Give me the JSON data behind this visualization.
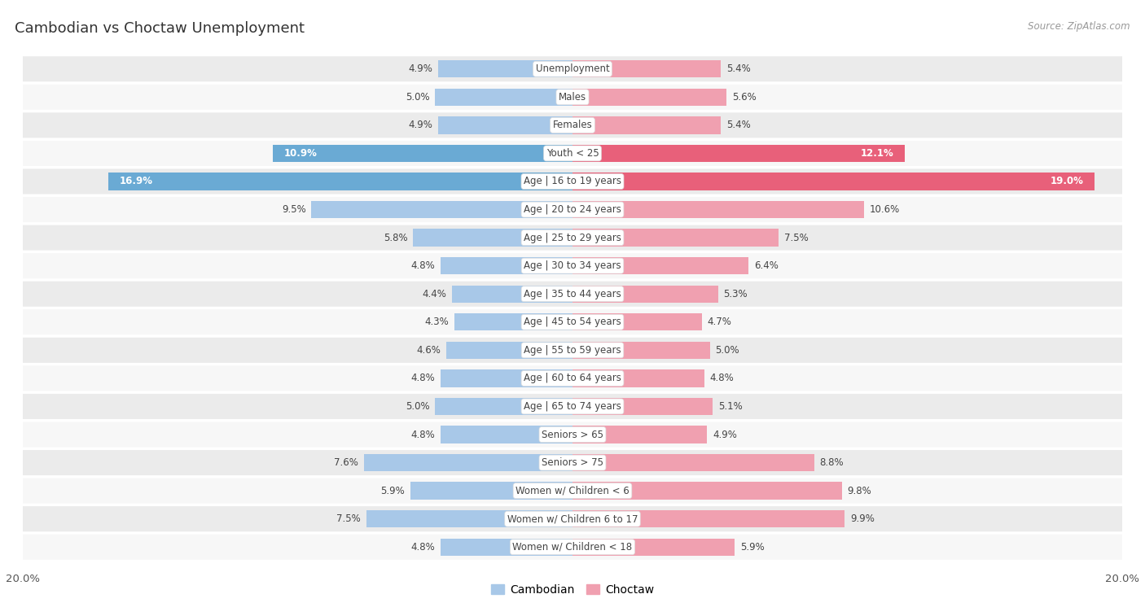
{
  "title": "Cambodian vs Choctaw Unemployment",
  "source": "Source: ZipAtlas.com",
  "categories": [
    "Unemployment",
    "Males",
    "Females",
    "Youth < 25",
    "Age | 16 to 19 years",
    "Age | 20 to 24 years",
    "Age | 25 to 29 years",
    "Age | 30 to 34 years",
    "Age | 35 to 44 years",
    "Age | 45 to 54 years",
    "Age | 55 to 59 years",
    "Age | 60 to 64 years",
    "Age | 65 to 74 years",
    "Seniors > 65",
    "Seniors > 75",
    "Women w/ Children < 6",
    "Women w/ Children 6 to 17",
    "Women w/ Children < 18"
  ],
  "cambodian": [
    4.9,
    5.0,
    4.9,
    10.9,
    16.9,
    9.5,
    5.8,
    4.8,
    4.4,
    4.3,
    4.6,
    4.8,
    5.0,
    4.8,
    7.6,
    5.9,
    7.5,
    4.8
  ],
  "choctaw": [
    5.4,
    5.6,
    5.4,
    12.1,
    19.0,
    10.6,
    7.5,
    6.4,
    5.3,
    4.7,
    5.0,
    4.8,
    5.1,
    4.9,
    8.8,
    9.8,
    9.9,
    5.9
  ],
  "cambodian_color": "#a8c8e8",
  "choctaw_color": "#f0a0b0",
  "highlight_cambodian_color": "#6aaad4",
  "highlight_choctaw_color": "#e8607a",
  "xlim": 20.0,
  "bar_height": 0.62,
  "row_color_odd": "#ebebeb",
  "row_color_even": "#f7f7f7",
  "title_fontsize": 13,
  "label_fontsize": 8.5,
  "value_fontsize": 8.5,
  "source_fontsize": 8.5,
  "highlight_rows": [
    3,
    4
  ]
}
